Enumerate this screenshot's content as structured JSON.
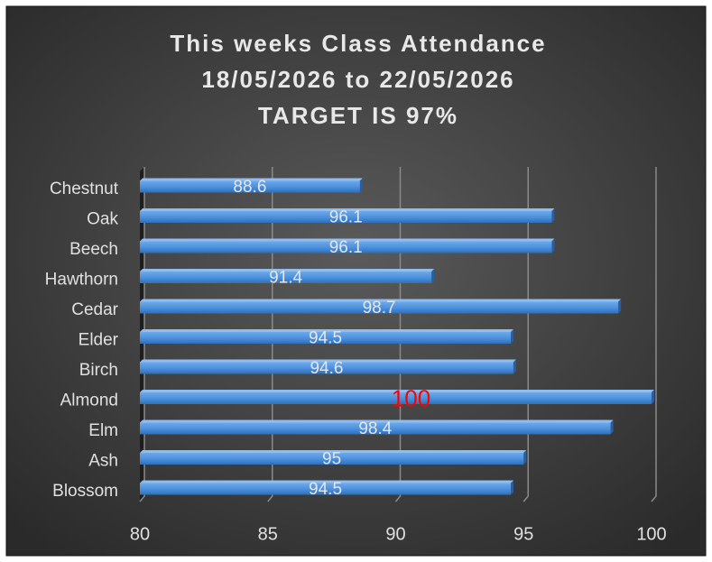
{
  "chart_data": {
    "type": "bar",
    "orientation": "horizontal",
    "title": [
      "This weeks Class Attendance",
      "18/05/2026 to 22/05/2026",
      "TARGET IS 97%"
    ],
    "categories": [
      "Chestnut",
      "Oak",
      "Beech",
      "Hawthorn",
      "Cedar",
      "Elder",
      "Birch",
      "Almond",
      "Elm",
      "Ash",
      "Blossom"
    ],
    "values": [
      88.6,
      96.1,
      96.1,
      91.4,
      98.7,
      94.5,
      94.6,
      100,
      98.4,
      95,
      94.5
    ],
    "color": "#4a8fdc",
    "value_label_colors": [
      "#e6e6e6",
      "#e6e6e6",
      "#e6e6e6",
      "#e6e6e6",
      "#e6e6e6",
      "#e6e6e6",
      "#e6e6e6",
      "#ff0000",
      "#e6e6e6",
      "#e6e6e6",
      "#e6e6e6"
    ],
    "xlim": [
      80,
      100
    ],
    "xticks": [
      80,
      85,
      90,
      95,
      100
    ],
    "grid": true
  }
}
